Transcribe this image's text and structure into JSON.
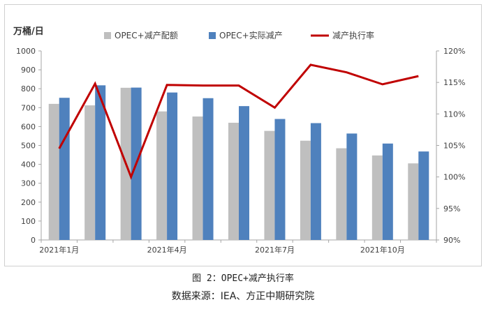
{
  "caption": "图 2：OPEC+减产执行率",
  "source": "数据来源：IEA、方正中期研究院",
  "chart_data": {
    "type": "bar",
    "left_unit": "万桶/日",
    "categories": [
      "2021年1月",
      "2021年2月",
      "2021年3月",
      "2021年4月",
      "2021年5月",
      "2021年6月",
      "2021年7月",
      "2021年8月",
      "2021年9月",
      "2021年10月",
      "2021年11月"
    ],
    "category_labels": [
      "2021年1月",
      "",
      "",
      "2021年4月",
      "",
      "",
      "2021年7月",
      "",
      "",
      "2021年10月",
      ""
    ],
    "series": [
      {
        "name": "OPEC+减产配额",
        "type": "bar",
        "axis": "left",
        "color": "#bfbfbf",
        "values": [
          720,
          712,
          805,
          680,
          653,
          620,
          577,
          525,
          485,
          447,
          405
        ]
      },
      {
        "name": "OPEC+实际减产",
        "type": "bar",
        "axis": "left",
        "color": "#4f81bd",
        "values": [
          752,
          818,
          806,
          780,
          750,
          708,
          640,
          618,
          563,
          510,
          468
        ]
      },
      {
        "name": "减产执行率",
        "type": "line",
        "axis": "right",
        "color": "#c00000",
        "values": [
          104.5,
          114.8,
          100.0,
          114.6,
          114.5,
          114.5,
          111.0,
          117.8,
          116.6,
          114.7,
          116.0
        ]
      }
    ],
    "ylim_left": [
      0,
      1000
    ],
    "yticks_left": [
      "0",
      "100",
      "200",
      "300",
      "400",
      "500",
      "600",
      "700",
      "800",
      "900",
      "1000"
    ],
    "ylim_right": [
      90,
      120
    ],
    "yticks_right": [
      "90%",
      "95%",
      "100%",
      "105%",
      "110%",
      "115%",
      "120%"
    ],
    "legend_position": "top",
    "grid": false
  }
}
